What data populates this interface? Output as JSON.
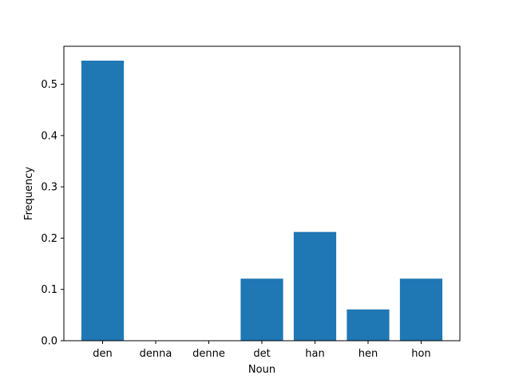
{
  "chart_data": {
    "type": "bar",
    "title": "",
    "xlabel": "Noun",
    "ylabel": "Frequency",
    "categories": [
      "den",
      "denna",
      "denne",
      "det",
      "han",
      "hen",
      "hon"
    ],
    "values": [
      0.546,
      0.0,
      0.0,
      0.121,
      0.212,
      0.061,
      0.121
    ],
    "ylim": [
      0,
      0.574
    ],
    "yticks": [
      0.0,
      0.1,
      0.2,
      0.3,
      0.4,
      0.5
    ],
    "ytick_labels": [
      "0.0",
      "0.1",
      "0.2",
      "0.3",
      "0.4",
      "0.5"
    ],
    "grid": false,
    "legend": "none",
    "bar_color": "#1f77b4"
  }
}
